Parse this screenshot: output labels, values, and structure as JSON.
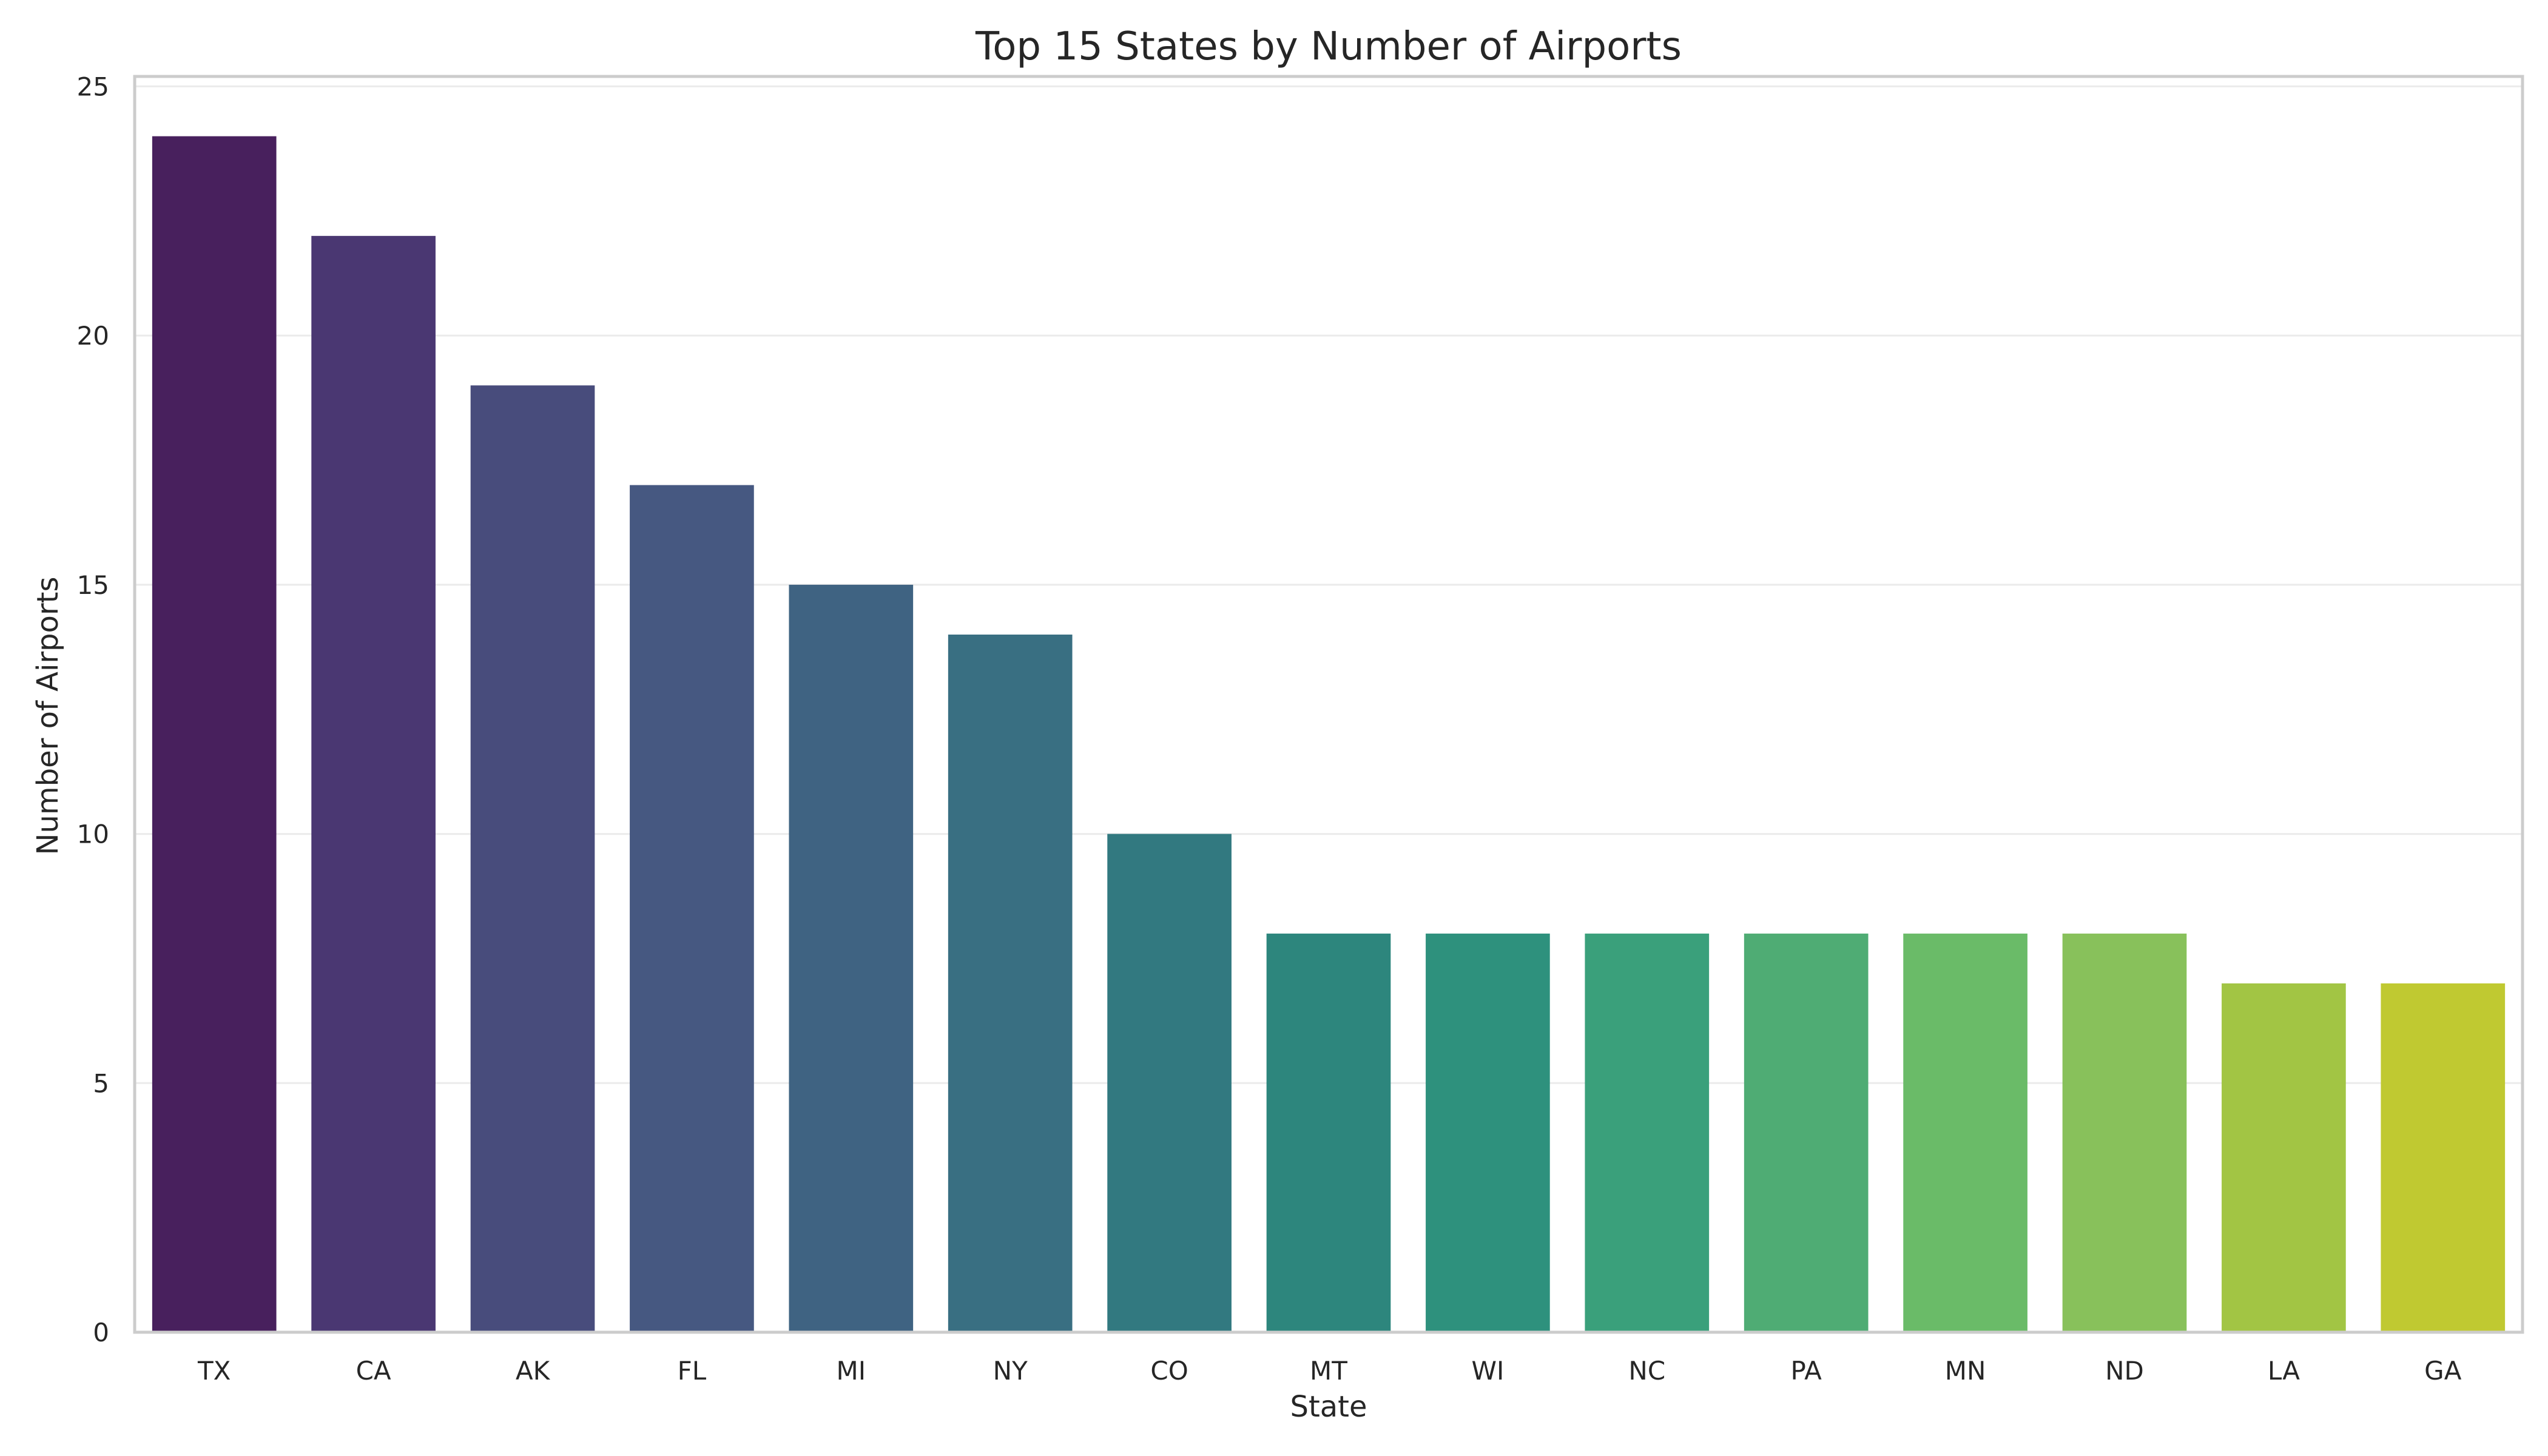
{
  "chart_data": {
    "type": "bar",
    "title": "Top 15 States by Number of Airports",
    "xlabel": "State",
    "ylabel": "Number of Airports",
    "categories": [
      "TX",
      "CA",
      "AK",
      "FL",
      "MI",
      "NY",
      "CO",
      "MT",
      "WI",
      "NC",
      "PA",
      "MN",
      "ND",
      "LA",
      "GA"
    ],
    "values": [
      24,
      22,
      19,
      17,
      15,
      14,
      10,
      8,
      8,
      8,
      8,
      8,
      8,
      7,
      7
    ],
    "colors": [
      "#48205d",
      "#4a3772",
      "#484c7c",
      "#465881",
      "#3f6382",
      "#396f82",
      "#327980",
      "#2d867d",
      "#2e917d",
      "#3aa07b",
      "#4fac74",
      "#6abb68",
      "#88c15b",
      "#a2c544",
      "#c0c931"
    ],
    "ylim": [
      0,
      25.2
    ],
    "yticks": [
      0,
      5,
      10,
      15,
      20,
      25
    ],
    "grid": true,
    "grid_axis": "y",
    "legend": "none"
  }
}
